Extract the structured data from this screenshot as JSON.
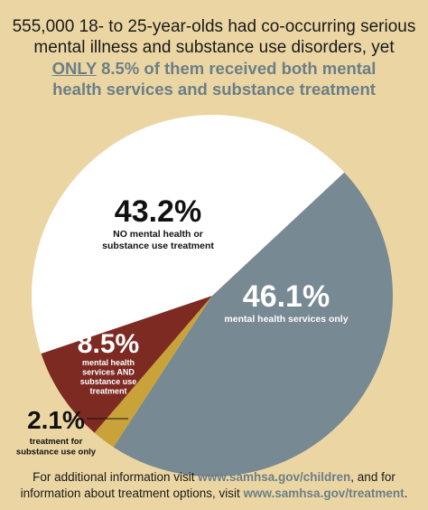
{
  "header": {
    "line1": "555,000 18- to 25-year-olds had co-occurring serious",
    "line2": "mental illness and substance use disorders, yet",
    "line3_emphasis": "ONLY",
    "line3_rest": " 8.5% of them received both mental",
    "line4": "health services and substance treatment"
  },
  "chart_data": {
    "type": "pie",
    "slices": [
      {
        "label": "mental health services only",
        "value": 46.1,
        "value_label": "46.1%",
        "color": "#778992"
      },
      {
        "label": "treatment for substance use only",
        "value": 2.1,
        "value_label": "2.1%",
        "color": "#c9a23a"
      },
      {
        "label": "mental health services AND substance use treatment",
        "value": 8.5,
        "value_label": "8.5%",
        "color": "#7c2a22"
      },
      {
        "label": "NO mental health or substance use treatment",
        "value": 43.2,
        "value_label": "43.2%",
        "color": "#ffffff"
      }
    ],
    "label_lines": {
      "no_treatment": [
        "NO mental health or",
        "substance use treatment"
      ],
      "both": [
        "mental health",
        "services AND",
        "substance use",
        "treatment"
      ],
      "substance_only": [
        "treatment for",
        "substance use only"
      ],
      "mental_only": [
        "mental health services only"
      ]
    }
  },
  "footer": {
    "text1": "For additional information visit ",
    "link1": "www.samhsa.gov/children",
    "text2": ", and for",
    "text3": "information about treatment options, visit ",
    "link2": "www.samhsa.gov/treatment",
    "text4": "."
  }
}
